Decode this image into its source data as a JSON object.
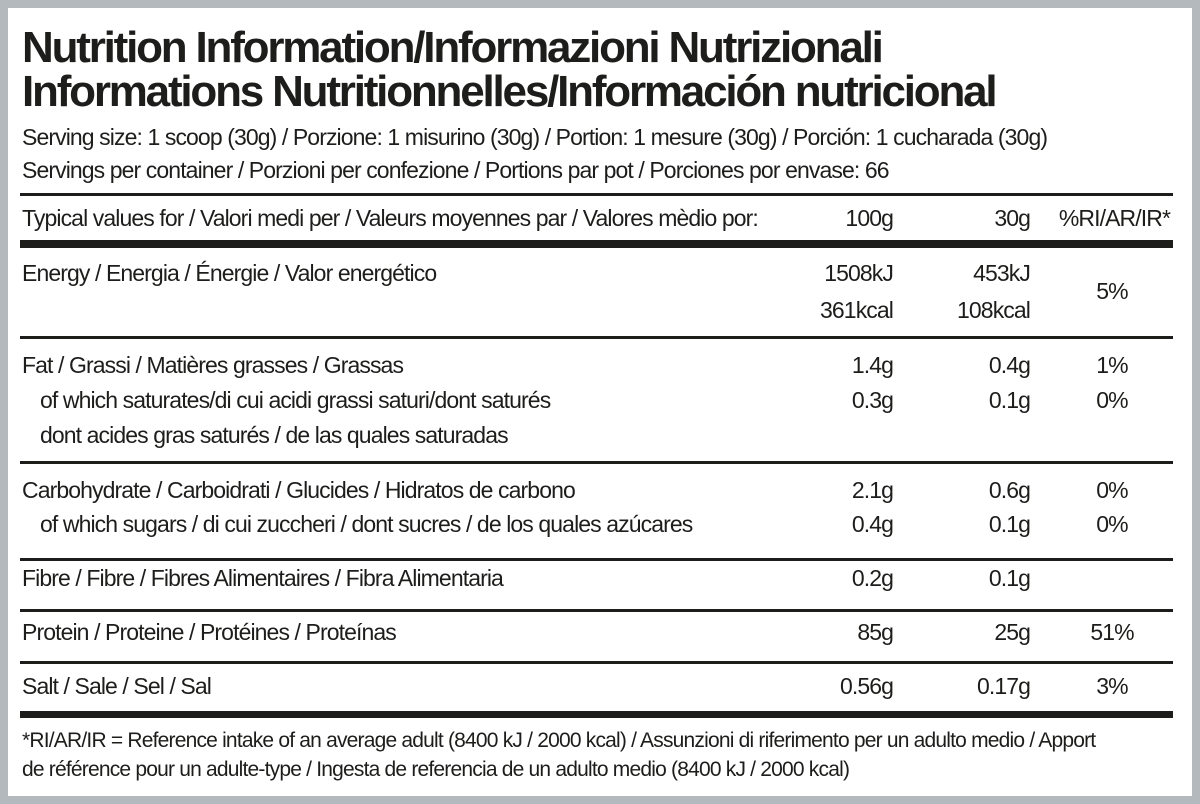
{
  "title_line1": "Nutrition Information/Informazioni Nutrizionali",
  "title_line2": "Informations Nutritionnelles/Información nutricional",
  "serving_size": "Serving size: 1 scoop (30g) / Porzione: 1 misurino (30g) / Portion: 1 mesure (30g) / Porción: 1 cucharada (30g)",
  "servings_per_container": "Servings per container / Porzioni per confezione / Portions par pot / Porciones por envase: 66",
  "header": {
    "label": "Typical values for / Valori medi per / Valeurs moyennes par / Valores mèdio por:",
    "col_100g": "100g",
    "col_30g": "30g",
    "col_ri": "%RI/AR/IR*"
  },
  "rows": {
    "energy": {
      "label": "Energy / Energia / Énergie / Valor energético",
      "v100_kj": "1508kJ",
      "v100_kcal": "361kcal",
      "v30_kj": "453kJ",
      "v30_kcal": "108kcal",
      "ri": "5%"
    },
    "fat": {
      "label": "Fat / Grassi / Matières grasses / Grassas",
      "v100": "1.4g",
      "v30": "0.4g",
      "ri": "1%"
    },
    "saturates": {
      "label": "of which saturates/di cui acidi grassi saturi/dont saturés",
      "label2": "dont acides gras saturés / de las quales saturadas",
      "v100": "0.3g",
      "v30": "0.1g",
      "ri": "0%"
    },
    "carbohydrate": {
      "label": "Carbohydrate / Carboidrati / Glucides / Hidratos de carbono",
      "v100": "2.1g",
      "v30": "0.6g",
      "ri": "0%"
    },
    "sugars": {
      "label": "of which sugars / di cui zuccheri / dont sucres / de los quales azúcares",
      "v100": "0.4g",
      "v30": "0.1g",
      "ri": "0%"
    },
    "fibre": {
      "label": "Fibre / Fibre / Fibres Alimentaires / Fibra Alimentaria",
      "v100": "0.2g",
      "v30": "0.1g"
    },
    "protein": {
      "label": "Protein / Proteine / Protéines / Proteínas",
      "v100": "85g",
      "v30": "25g",
      "ri": "51%"
    },
    "salt": {
      "label": "Salt / Sale / Sel / Sal",
      "v100": "0.56g",
      "v30": "0.17g",
      "ri": "3%"
    }
  },
  "footnote_line1": "*RI/AR/IR = Reference intake of an average adult (8400 kJ / 2000 kcal)  / Assunzioni di riferimento per un adulto medio / Apport",
  "footnote_line2": "de référence pour un adulte-type / Ingesta de referencia de un adulto medio (8400 kJ / 2000 kcal)"
}
